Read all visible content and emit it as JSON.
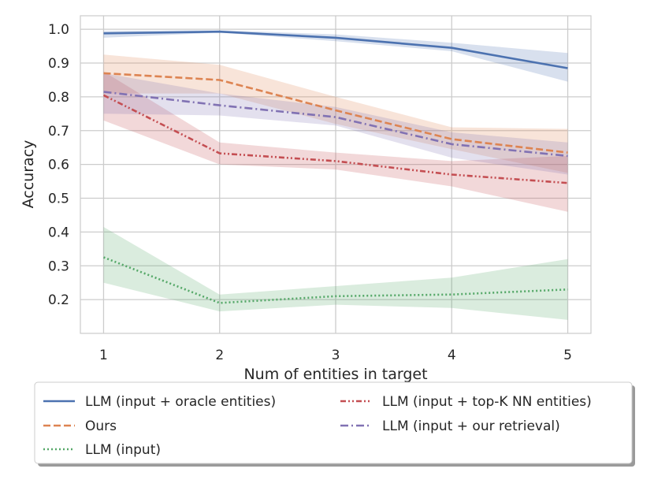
{
  "chart_data": {
    "type": "line",
    "title": "",
    "xlabel": "Num of entities in target",
    "ylabel": "Accuracy",
    "x": [
      1,
      2,
      3,
      4,
      5
    ],
    "xlim": [
      0.8,
      5.2
    ],
    "ylim": [
      0.1,
      1.04
    ],
    "x_ticks": [
      "1",
      "2",
      "3",
      "4",
      "5"
    ],
    "y_ticks": [
      "0.2",
      "0.3",
      "0.4",
      "0.5",
      "0.6",
      "0.7",
      "0.8",
      "0.9",
      "1.0"
    ],
    "grid": true,
    "legend_position": "bottom",
    "series": [
      {
        "name": "LLM (input + oracle entities)",
        "color": "#4c72b0",
        "dash": "solid",
        "values": [
          0.988,
          0.993,
          0.975,
          0.945,
          0.885
        ],
        "lower": [
          0.975,
          0.99,
          0.965,
          0.935,
          0.845
        ],
        "upper": [
          0.995,
          0.997,
          0.985,
          0.96,
          0.93
        ]
      },
      {
        "name": "Ours",
        "color": "#dd8452",
        "dash": "dashed",
        "values": [
          0.87,
          0.85,
          0.76,
          0.675,
          0.635
        ],
        "lower": [
          0.81,
          0.81,
          0.72,
          0.645,
          0.575
        ],
        "upper": [
          0.925,
          0.895,
          0.8,
          0.71,
          0.705
        ]
      },
      {
        "name": "LLM (input)",
        "color": "#55a868",
        "dash": "dotted",
        "values": [
          0.325,
          0.19,
          0.21,
          0.215,
          0.23
        ],
        "lower": [
          0.25,
          0.165,
          0.185,
          0.175,
          0.14
        ],
        "upper": [
          0.415,
          0.215,
          0.24,
          0.265,
          0.32
        ]
      },
      {
        "name": "LLM (input + top-K NN entities)",
        "color": "#c44e52",
        "dash": "dashdotdot",
        "values": [
          0.805,
          0.633,
          0.61,
          0.57,
          0.545
        ],
        "lower": [
          0.73,
          0.6,
          0.585,
          0.535,
          0.46
        ],
        "upper": [
          0.875,
          0.665,
          0.635,
          0.61,
          0.625
        ]
      },
      {
        "name": "LLM (input + our retrieval)",
        "color": "#8172b3",
        "dash": "dashdot",
        "values": [
          0.815,
          0.775,
          0.74,
          0.66,
          0.625
        ],
        "lower": [
          0.75,
          0.745,
          0.715,
          0.62,
          0.57
        ],
        "upper": [
          0.87,
          0.81,
          0.77,
          0.695,
          0.665
        ]
      }
    ]
  }
}
